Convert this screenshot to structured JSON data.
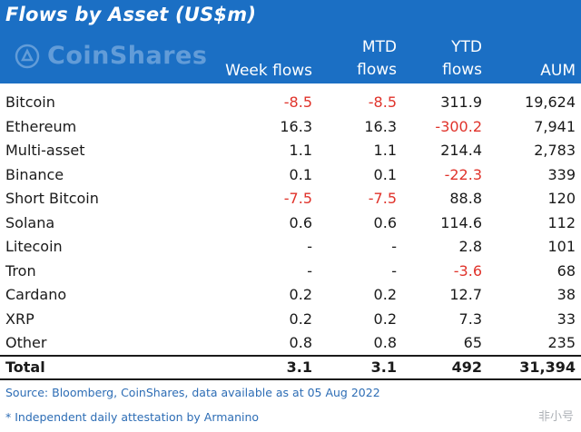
{
  "title": "Flows by Asset (US$m)",
  "logo_text": "CoinShares",
  "columns": {
    "week": "Week flows",
    "mtd_1": "MTD",
    "mtd_2": "flows",
    "ytd_1": "YTD",
    "ytd_2": "flows",
    "aum": "AUM"
  },
  "chart_data": {
    "type": "table",
    "title": "Flows by Asset (US$m)",
    "columns": [
      "",
      "Week flows",
      "MTD flows",
      "YTD flows",
      "AUM"
    ],
    "rows": [
      {
        "asset": "Bitcoin",
        "week": "-8.5",
        "mtd": "-8.5",
        "ytd": "311.9",
        "aum": "19,624"
      },
      {
        "asset": "Ethereum",
        "week": "16.3",
        "mtd": "16.3",
        "ytd": "-300.2",
        "aum": "7,941"
      },
      {
        "asset": "Multi-asset",
        "week": "1.1",
        "mtd": "1.1",
        "ytd": "214.4",
        "aum": "2,783"
      },
      {
        "asset": "Binance",
        "week": "0.1",
        "mtd": "0.1",
        "ytd": "-22.3",
        "aum": "339"
      },
      {
        "asset": "Short Bitcoin",
        "week": "-7.5",
        "mtd": "-7.5",
        "ytd": "88.8",
        "aum": "120"
      },
      {
        "asset": "Solana",
        "week": "0.6",
        "mtd": "0.6",
        "ytd": "114.6",
        "aum": "112"
      },
      {
        "asset": "Litecoin",
        "week": "-",
        "mtd": "-",
        "ytd": "2.8",
        "aum": "101"
      },
      {
        "asset": "Tron",
        "week": "-",
        "mtd": "-",
        "ytd": "-3.6",
        "aum": "68"
      },
      {
        "asset": "Cardano",
        "week": "0.2",
        "mtd": "0.2",
        "ytd": "12.7",
        "aum": "38"
      },
      {
        "asset": "XRP",
        "week": "0.2",
        "mtd": "0.2",
        "ytd": "7.3",
        "aum": "33"
      },
      {
        "asset": "Other",
        "week": "0.8",
        "mtd": "0.8",
        "ytd": "65",
        "aum": "235"
      }
    ],
    "total": {
      "asset": "Total",
      "week": "3.1",
      "mtd": "3.1",
      "ytd": "492",
      "aum": "31,394"
    }
  },
  "source": "Source: Bloomberg, CoinShares, data available as at 05 Aug 2022",
  "note": "* Independent daily attestation by Armanino",
  "watermark": "非小号",
  "colors": {
    "header_bg": "#1b6fc4",
    "negative": "#e0332b",
    "footnote": "#2d6db5"
  }
}
